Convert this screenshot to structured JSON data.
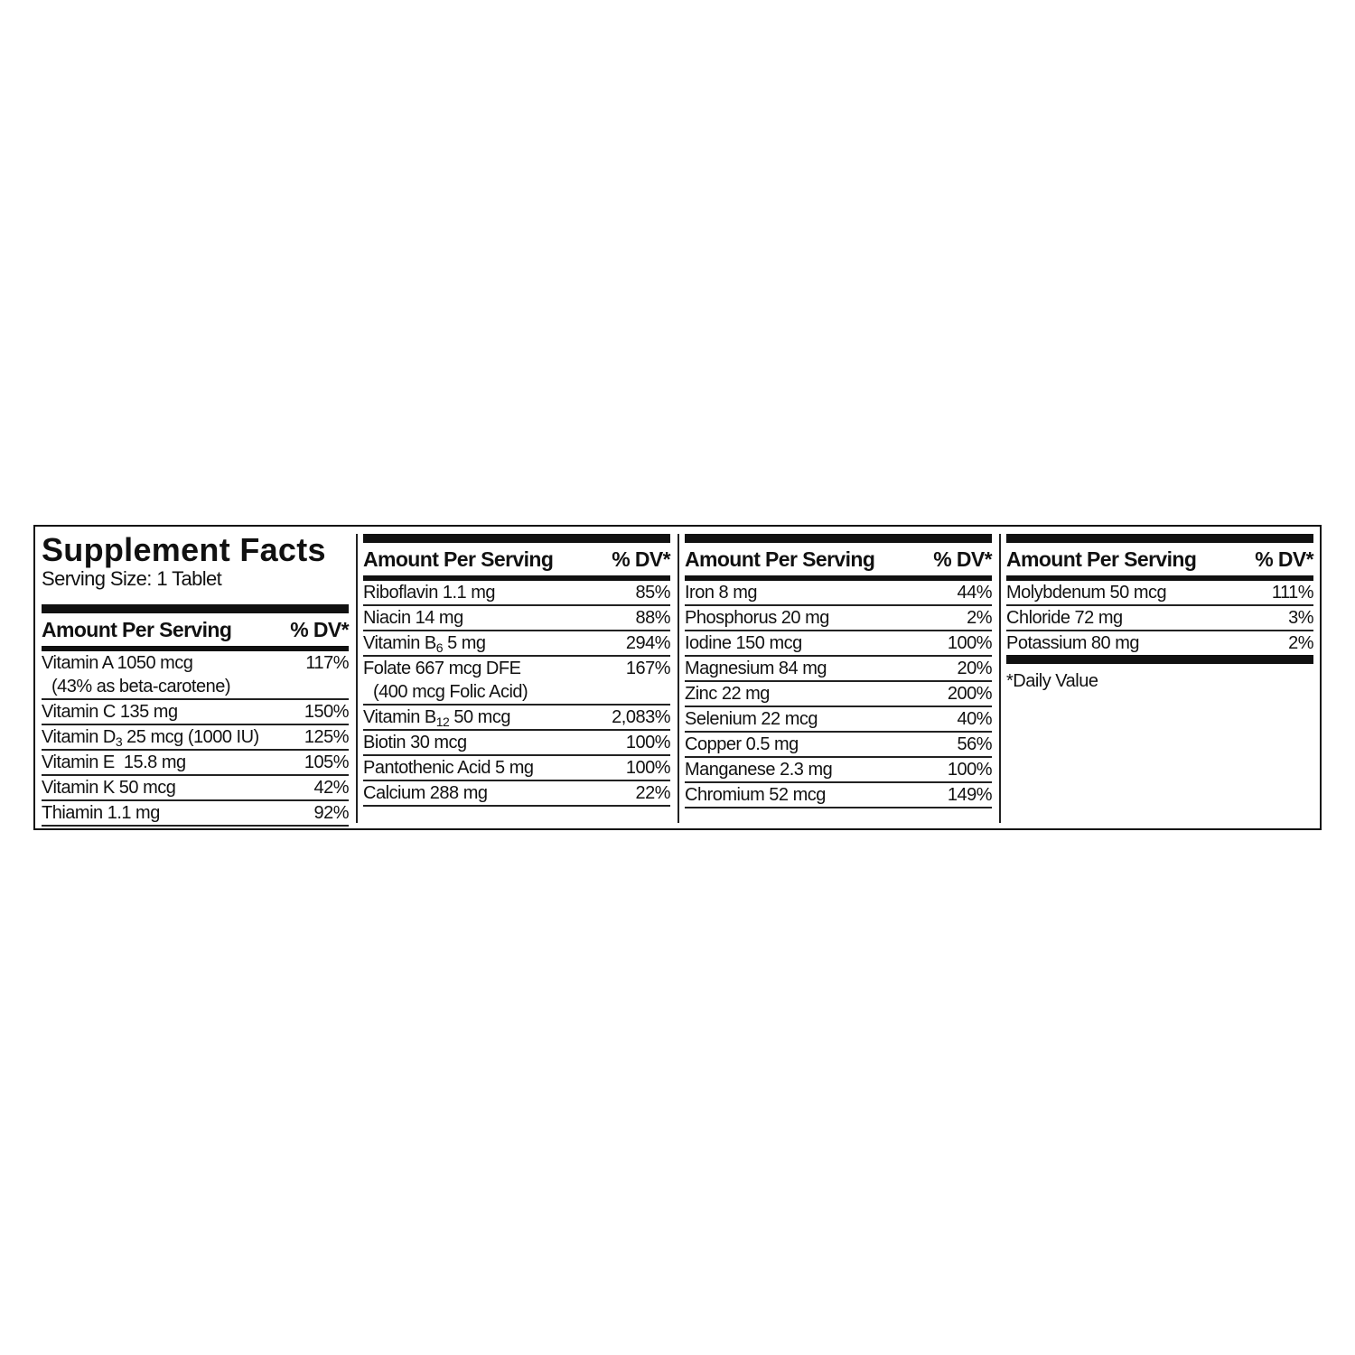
{
  "title": "Supplement Facts",
  "serving_size": "Serving Size: 1 Tablet",
  "header": {
    "amount": "Amount Per Serving",
    "dv": "% DV*"
  },
  "footnote": "*Daily Value",
  "columns": [
    [
      {
        "pre": "Vitamin A 1050 mcg",
        "line2": "(43% as beta-carotene)",
        "dv": "117%"
      },
      {
        "pre": "Vitamin C 135 mg",
        "dv": "150%"
      },
      {
        "pre": "Vitamin D",
        "sub": "3",
        "post": " 25 mcg (1000 IU)",
        "dv": "125%"
      },
      {
        "pre": "Vitamin E  15.8 mg",
        "dv": "105%"
      },
      {
        "pre": "Vitamin K 50 mcg",
        "dv": "42%"
      },
      {
        "pre": "Thiamin 1.1 mg",
        "dv": "92%"
      }
    ],
    [
      {
        "pre": "Riboflavin 1.1 mg",
        "dv": "85%"
      },
      {
        "pre": "Niacin 14 mg",
        "dv": "88%"
      },
      {
        "pre": "Vitamin B",
        "sub": "6",
        "post": " 5 mg",
        "dv": "294%"
      },
      {
        "pre": "Folate 667 mcg DFE",
        "line2": "(400 mcg Folic Acid)",
        "dv": "167%"
      },
      {
        "pre": "Vitamin B",
        "sub": "12",
        "post": " 50 mcg",
        "dv": "2,083%"
      },
      {
        "pre": "Biotin 30 mcg",
        "dv": "100%"
      },
      {
        "pre": "Pantothenic Acid 5 mg",
        "dv": "100%"
      },
      {
        "pre": "Calcium 288 mg",
        "dv": "22%"
      }
    ],
    [
      {
        "pre": "Iron 8 mg",
        "dv": "44%"
      },
      {
        "pre": "Phosphorus 20 mg",
        "dv": "2%"
      },
      {
        "pre": "Iodine 150 mcg",
        "dv": "100%"
      },
      {
        "pre": "Magnesium 84 mg",
        "dv": "20%"
      },
      {
        "pre": "Zinc 22 mg",
        "dv": "200%"
      },
      {
        "pre": "Selenium 22 mcg",
        "dv": "40%"
      },
      {
        "pre": "Copper 0.5 mg",
        "dv": "56%"
      },
      {
        "pre": "Manganese 2.3 mg",
        "dv": "100%"
      },
      {
        "pre": "Chromium 52 mcg",
        "dv": "149%"
      }
    ],
    [
      {
        "pre": "Molybdenum 50 mcg",
        "dv": "111%"
      },
      {
        "pre": "Chloride 72 mg",
        "dv": "3%"
      },
      {
        "pre": "Potassium 80 mg",
        "dv": "2%"
      }
    ]
  ]
}
